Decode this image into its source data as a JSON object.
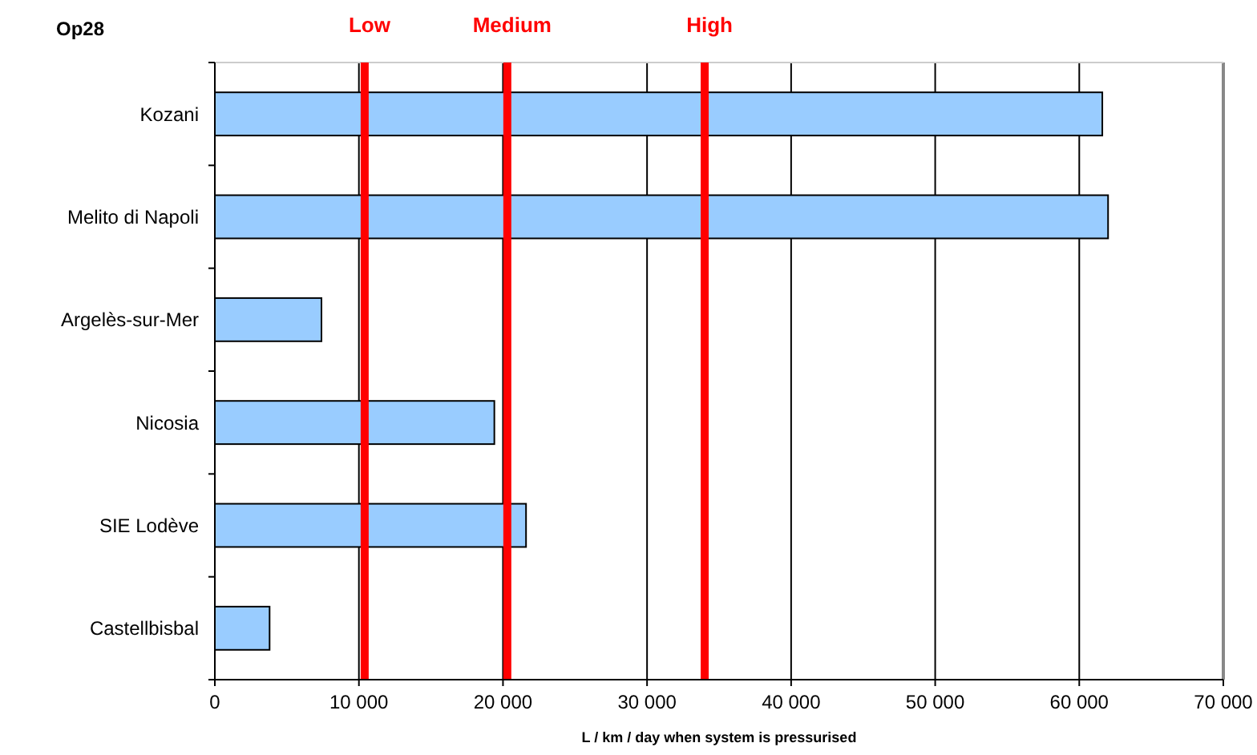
{
  "chart_data": {
    "type": "bar",
    "orientation": "horizontal",
    "title": "Op28",
    "xlabel": "L / km / day when system is pressurised",
    "categories": [
      "Kozani",
      "Melito di Napoli",
      "Argelès-sur-Mer",
      "Nicosia",
      "SIE Lodève",
      "Castellbisbal"
    ],
    "values": [
      61600,
      62000,
      7400,
      19400,
      21600,
      3800
    ],
    "color": "#99ccff",
    "xlim": [
      0,
      70000
    ],
    "xticks": [
      {
        "value": 0,
        "label": "0"
      },
      {
        "value": 10000,
        "label": "10 000"
      },
      {
        "value": 20000,
        "label": "20 000"
      },
      {
        "value": 30000,
        "label": "30 000"
      },
      {
        "value": 40000,
        "label": "40 000"
      },
      {
        "value": 50000,
        "label": "50 000"
      },
      {
        "value": 60000,
        "label": "60 000"
      },
      {
        "value": 70000,
        "label": "70 000"
      }
    ],
    "grid": "x",
    "ref_lines": [
      {
        "axis": "x",
        "value": 10400,
        "label": "Low",
        "color": "#ff0000"
      },
      {
        "axis": "x",
        "value": 20300,
        "label": "Medium",
        "color": "#ff0000"
      },
      {
        "axis": "x",
        "value": 34000,
        "label": "High",
        "color": "#ff0000"
      }
    ]
  }
}
